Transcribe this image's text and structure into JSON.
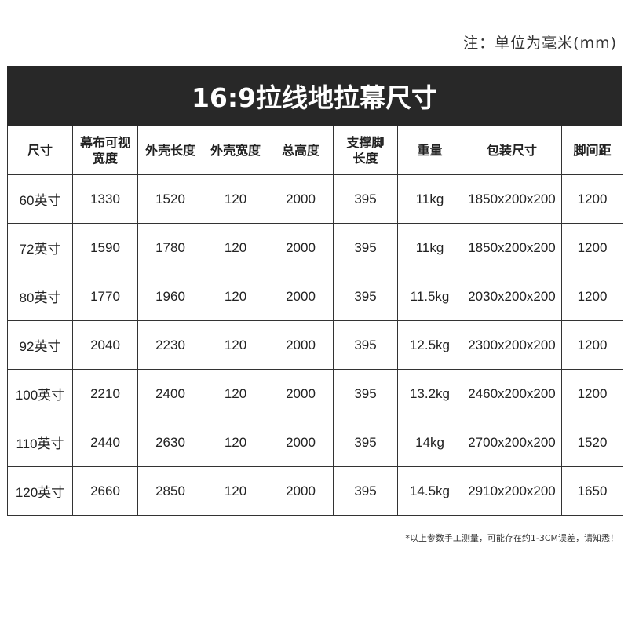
{
  "note": "注：单位为毫米(mm)",
  "title": "16:9拉线地拉幕尺寸",
  "table": {
    "headers": [
      "尺寸",
      "幕布可视宽度",
      "外壳长度",
      "外壳宽度",
      "总高度",
      "支撑脚长度",
      "重量",
      "包装尺寸",
      "脚间距"
    ],
    "rows": [
      [
        "60英寸",
        "1330",
        "1520",
        "120",
        "2000",
        "395",
        "11kg",
        "1850x200x200",
        "1200"
      ],
      [
        "72英寸",
        "1590",
        "1780",
        "120",
        "2000",
        "395",
        "11kg",
        "1850x200x200",
        "1200"
      ],
      [
        "80英寸",
        "1770",
        "1960",
        "120",
        "2000",
        "395",
        "11.5kg",
        "2030x200x200",
        "1200"
      ],
      [
        "92英寸",
        "2040",
        "2230",
        "120",
        "2000",
        "395",
        "12.5kg",
        "2300x200x200",
        "1200"
      ],
      [
        "100英寸",
        "2210",
        "2400",
        "120",
        "2000",
        "395",
        "13.2kg",
        "2460x200x200",
        "1200"
      ],
      [
        "110英寸",
        "2440",
        "2630",
        "120",
        "2000",
        "395",
        "14kg",
        "2700x200x200",
        "1520"
      ],
      [
        "120英寸",
        "2660",
        "2850",
        "120",
        "2000",
        "395",
        "14.5kg",
        "2910x200x200",
        "1650"
      ]
    ]
  },
  "footnote": "*以上参数手工测量，可能存在约1-3CM误差，请知悉！"
}
